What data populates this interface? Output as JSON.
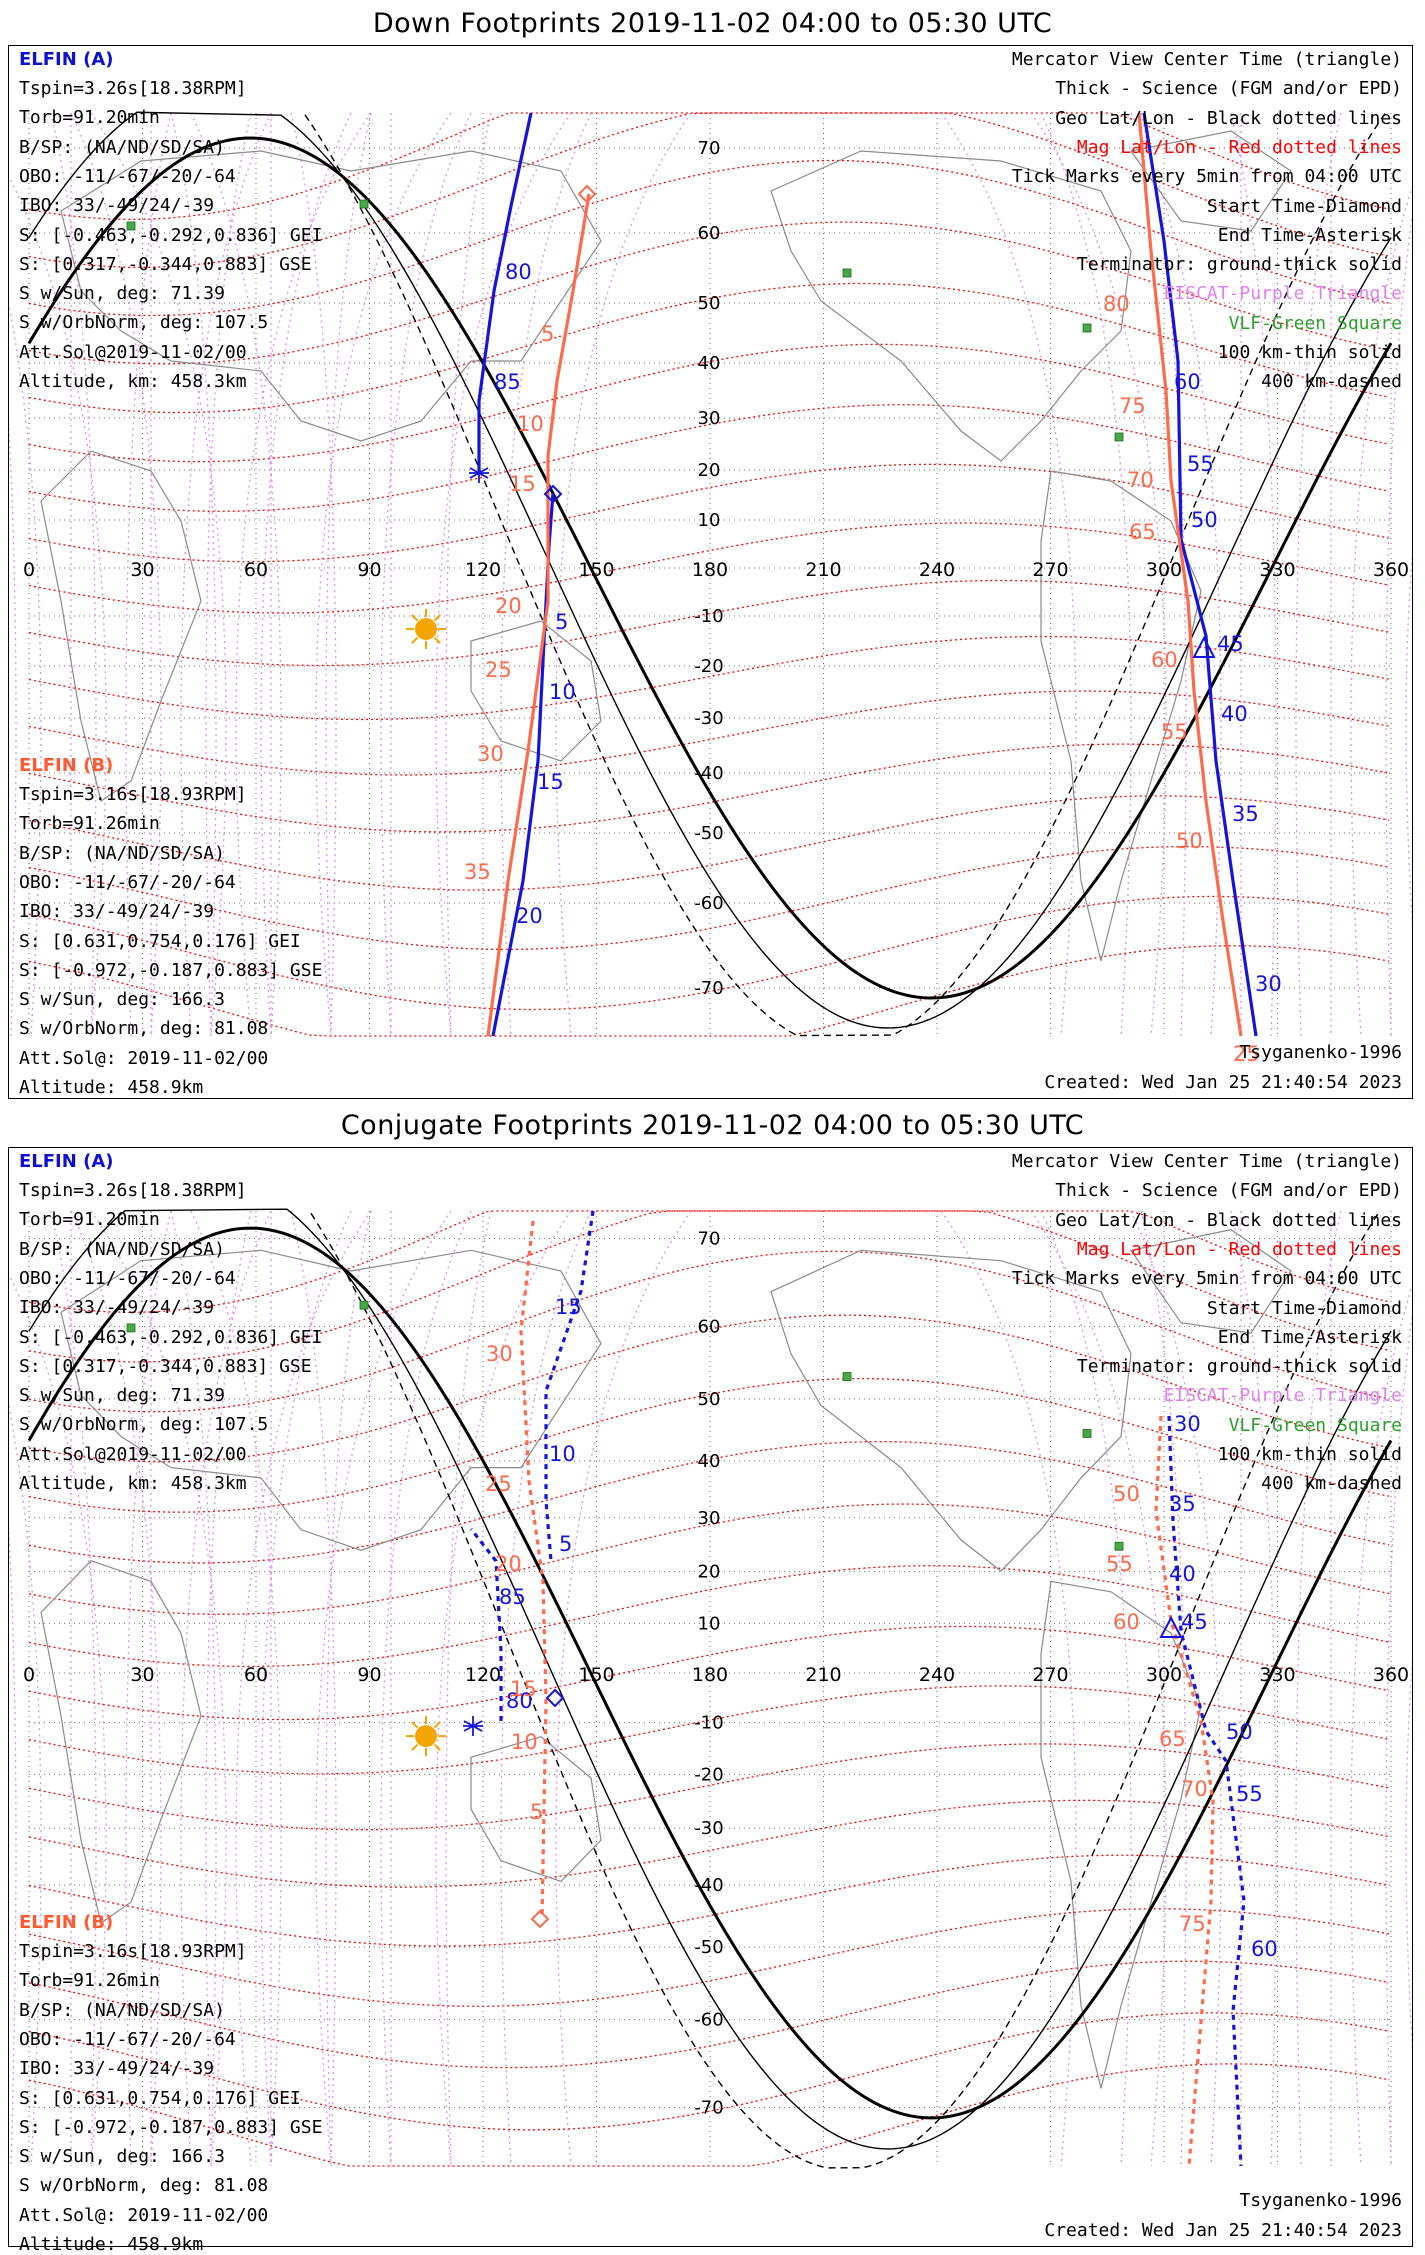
{
  "panels": [
    {
      "id": "down",
      "title": "Down Footprints 2019-11-02 04:00 to 05:30 UTC",
      "elfin_a": {
        "label": "ELFIN (A)",
        "lines": [
          "Tspin=3.26s[18.38RPM]",
          "Torb=91.20min",
          "B/SP: (NA/ND/SD/SA)",
          "OBO: -11/-67/-20/-64",
          "IBO: 33/-49/24/-39",
          "S: [-0.463,-0.292,0.836] GEI",
          "S: [0.317,-0.344,0.883] GSE",
          "S w/Sun, deg: 71.39",
          "S w/OrbNorm, deg: 107.5",
          "Att.Sol@2019-11-02/00",
          "Altitude, km: 458.3km"
        ]
      },
      "elfin_b": {
        "label": "ELFIN (B)",
        "lines": [
          "Tspin=3.16s[18.93RPM]",
          "Torb=91.26min",
          "B/SP: (NA/ND/SD/SA)",
          "OBO: -11/-67/-20/-64",
          "IBO: 33/-49/24/-39",
          "S: [0.631,0.754,0.176] GEI",
          "S: [-0.972,-0.187,0.883] GSE",
          "S w/Sun, deg: 166.3",
          "S w/OrbNorm, deg: 81.08",
          "Att.Sol@: 2019-11-02/00",
          "Altitude: 458.9km"
        ]
      },
      "legend": [
        "Mercator View Center Time (triangle)",
        "Thick - Science (FGM and/or EPD)",
        "Geo Lat/Lon - Black dotted lines",
        "Mag Lat/Lon - Red dotted lines",
        "Tick Marks every 5min from 04:00 UTC",
        "Start Time-Diamond",
        "End Time-Asterisk",
        "Terminator: ground-thick solid",
        "EISCAT-Purple Triangle",
        "VLF-Green Square",
        "100 km-thin solid",
        "400 km-dashed"
      ],
      "model": "Tsyganenko-1996",
      "created": "Created: Wed Jan 25 21:40:54 2023"
    },
    {
      "id": "conjugate",
      "title": "Conjugate Footprints 2019-11-02 04:00 to 05:30 UTC",
      "elfin_a": {
        "label": "ELFIN (A)",
        "lines": [
          "Tspin=3.26s[18.38RPM]",
          "Torb=91.20min",
          "B/SP: (NA/ND/SD/SA)",
          "OBO: -11/-67/-20/-64",
          "IBO: 33/-49/24/-39",
          "S: [-0.463,-0.292,0.836] GEI",
          "S: [0.317,-0.344,0.883] GSE",
          "S w/Sun, deg: 71.39",
          "S w/OrbNorm, deg: 107.5",
          "Att.Sol@2019-11-02/00",
          "Altitude, km: 458.3km"
        ]
      },
      "elfin_b": {
        "label": "ELFIN (B)",
        "lines": [
          "Tspin=3.16s[18.93RPM]",
          "Torb=91.26min",
          "B/SP: (NA/ND/SD/SA)",
          "OBO: -11/-67/-20/-64",
          "IBO: 33/-49/24/-39",
          "S: [0.631,0.754,0.176] GEI",
          "S: [-0.972,-0.187,0.883] GSE",
          "S w/Sun, deg: 166.3",
          "S w/OrbNorm, deg: 81.08",
          "Att.Sol@: 2019-11-02/00",
          "Altitude: 458.9km"
        ]
      },
      "legend": [
        "Mercator View Center Time (triangle)",
        "Thick - Science (FGM and/or EPD)",
        "Geo Lat/Lon - Black dotted lines",
        "Mag Lat/Lon - Red dotted lines",
        "Tick Marks every 5min from 04:00 UTC",
        "Start Time-Diamond",
        "End Time-Asterisk",
        "Terminator: ground-thick solid",
        "EISCAT-Purple Triangle",
        "VLF-Green Square",
        "100 km-thin solid",
        "400 km-dashed"
      ],
      "model": "Tsyganenko-1996",
      "created": "Created: Wed Jan 25 21:40:54 2023"
    }
  ],
  "map": {
    "lon_ticks": [
      "0",
      "30",
      "60",
      "90",
      "120",
      "150",
      "180",
      "210",
      "240",
      "270",
      "300",
      "330",
      "360"
    ],
    "lat_ticks": [
      "70",
      "60",
      "50",
      "40",
      "30",
      "20",
      "10",
      "-10",
      "-20",
      "-30",
      "-40",
      "-50",
      "-60",
      "-70"
    ]
  },
  "tracks": {
    "down": {
      "a_west": {
        "points": [
          [
            530,
            112
          ],
          [
            510,
            205
          ],
          [
            493,
            290
          ],
          [
            478,
            400
          ],
          [
            478,
            470
          ]
        ],
        "labels": [
          {
            "text": "80",
            "x": 504,
            "y": 278
          },
          {
            "text": "85",
            "x": 493,
            "y": 388
          }
        ]
      },
      "a_mid": {
        "points": [
          [
            552,
            492
          ],
          [
            548,
            545
          ],
          [
            543,
            640
          ],
          [
            537,
            760
          ],
          [
            522,
            880
          ],
          [
            492,
            1035
          ]
        ],
        "labels": [
          {
            "text": "5",
            "x": 554,
            "y": 628
          },
          {
            "text": "10",
            "x": 548,
            "y": 698
          },
          {
            "text": "15",
            "x": 536,
            "y": 788
          },
          {
            "text": "20",
            "x": 515,
            "y": 922
          }
        ]
      },
      "a_east": {
        "points": [
          [
            1143,
            112
          ],
          [
            1163,
            240
          ],
          [
            1177,
            360
          ],
          [
            1180,
            538
          ],
          [
            1205,
            635
          ],
          [
            1215,
            760
          ],
          [
            1232,
            880
          ],
          [
            1255,
            1035
          ]
        ],
        "labels": [
          {
            "text": "60",
            "x": 1173,
            "y": 388
          },
          {
            "text": "55",
            "x": 1186,
            "y": 470
          },
          {
            "text": "50",
            "x": 1190,
            "y": 526
          },
          {
            "text": "45",
            "x": 1216,
            "y": 650
          },
          {
            "text": "40",
            "x": 1220,
            "y": 720
          },
          {
            "text": "35",
            "x": 1231,
            "y": 820
          },
          {
            "text": "30",
            "x": 1254,
            "y": 990
          }
        ]
      },
      "b_west": {
        "points": [
          [
            588,
            193
          ],
          [
            572,
            290
          ],
          [
            556,
            380
          ],
          [
            547,
            455
          ],
          [
            547,
            600
          ],
          [
            527,
            750
          ],
          [
            507,
            880
          ],
          [
            487,
            1035
          ]
        ],
        "labels": [
          {
            "text": "5",
            "x": 540,
            "y": 340
          },
          {
            "text": "10",
            "x": 516,
            "y": 430
          },
          {
            "text": "15",
            "x": 508,
            "y": 490
          },
          {
            "text": "20",
            "x": 494,
            "y": 612
          },
          {
            "text": "25",
            "x": 484,
            "y": 676
          },
          {
            "text": "30",
            "x": 476,
            "y": 760
          },
          {
            "text": "35",
            "x": 463,
            "y": 878
          }
        ]
      },
      "b_east": {
        "points": [
          [
            1138,
            112
          ],
          [
            1150,
            250
          ],
          [
            1165,
            390
          ],
          [
            1170,
            480
          ],
          [
            1187,
            600
          ],
          [
            1193,
            690
          ],
          [
            1205,
            800
          ],
          [
            1222,
            920
          ],
          [
            1240,
            1035
          ]
        ],
        "labels": [
          {
            "text": "80",
            "x": 1102,
            "y": 310
          },
          {
            "text": "75",
            "x": 1118,
            "y": 412
          },
          {
            "text": "70",
            "x": 1126,
            "y": 486
          },
          {
            "text": "65",
            "x": 1128,
            "y": 538
          },
          {
            "text": "60",
            "x": 1150,
            "y": 666
          },
          {
            "text": "55",
            "x": 1160,
            "y": 738
          },
          {
            "text": "50",
            "x": 1175,
            "y": 847
          },
          {
            "text": "25",
            "x": 1232,
            "y": 1060
          }
        ]
      }
    },
    "conj": {
      "a_west": {
        "points": [
          [
            500,
            1720
          ],
          [
            500,
            1650
          ],
          [
            495,
            1560
          ],
          [
            470,
            1528
          ]
        ],
        "labels": [
          {
            "text": "85",
            "x": 498,
            "y": 1603
          },
          {
            "text": "80",
            "x": 505,
            "y": 1707
          }
        ]
      },
      "a_mid": {
        "points": [
          [
            592,
            1210
          ],
          [
            580,
            1290
          ],
          [
            545,
            1390
          ],
          [
            545,
            1500
          ],
          [
            550,
            1560
          ]
        ],
        "labels": [
          {
            "text": "15",
            "x": 554,
            "y": 1313
          },
          {
            "text": "10",
            "x": 548,
            "y": 1460
          },
          {
            "text": "5",
            "x": 558,
            "y": 1550
          }
        ]
      },
      "a_east": {
        "points": [
          [
            1168,
            1415
          ],
          [
            1172,
            1520
          ],
          [
            1180,
            1630
          ],
          [
            1205,
            1730
          ],
          [
            1225,
            1760
          ],
          [
            1243,
            1900
          ],
          [
            1232,
            2010
          ],
          [
            1240,
            2165
          ]
        ],
        "labels": [
          {
            "text": "30",
            "x": 1173,
            "y": 1430
          },
          {
            "text": "35",
            "x": 1168,
            "y": 1510
          },
          {
            "text": "40",
            "x": 1168,
            "y": 1580
          },
          {
            "text": "45",
            "x": 1180,
            "y": 1628
          },
          {
            "text": "50",
            "x": 1225,
            "y": 1738
          },
          {
            "text": "55",
            "x": 1235,
            "y": 1800
          },
          {
            "text": "60",
            "x": 1250,
            "y": 1955
          }
        ]
      },
      "b_west": {
        "points": [
          [
            532,
            1220
          ],
          [
            520,
            1330
          ],
          [
            528,
            1480
          ],
          [
            542,
            1580
          ],
          [
            545,
            1700
          ],
          [
            541,
            1918
          ]
        ],
        "labels": [
          {
            "text": "30",
            "x": 485,
            "y": 1360
          },
          {
            "text": "25",
            "x": 484,
            "y": 1490
          },
          {
            "text": "20",
            "x": 494,
            "y": 1570
          },
          {
            "text": "15",
            "x": 509,
            "y": 1695
          },
          {
            "text": "10",
            "x": 510,
            "y": 1748
          },
          {
            "text": "5",
            "x": 529,
            "y": 1818
          }
        ]
      },
      "b_east": {
        "points": [
          [
            1160,
            1415
          ],
          [
            1155,
            1510
          ],
          [
            1170,
            1620
          ],
          [
            1200,
            1720
          ],
          [
            1212,
            1800
          ],
          [
            1210,
            1900
          ],
          [
            1188,
            2165
          ]
        ],
        "labels": [
          {
            "text": "50",
            "x": 1112,
            "y": 1500
          },
          {
            "text": "55",
            "x": 1105,
            "y": 1570
          },
          {
            "text": "60",
            "x": 1112,
            "y": 1628
          },
          {
            "text": "65",
            "x": 1158,
            "y": 1745
          },
          {
            "text": "70",
            "x": 1180,
            "y": 1795
          },
          {
            "text": "75",
            "x": 1178,
            "y": 1930
          }
        ]
      }
    }
  },
  "colors": {
    "elfin_a": "#1414dc",
    "elfin_b": "#ff6a4a",
    "mag_grid": "#ff0000",
    "mag_meridian": "#e08cf0",
    "geo_grid": "#000000",
    "vlf": "#44aa44",
    "sun": "#f5a500"
  }
}
